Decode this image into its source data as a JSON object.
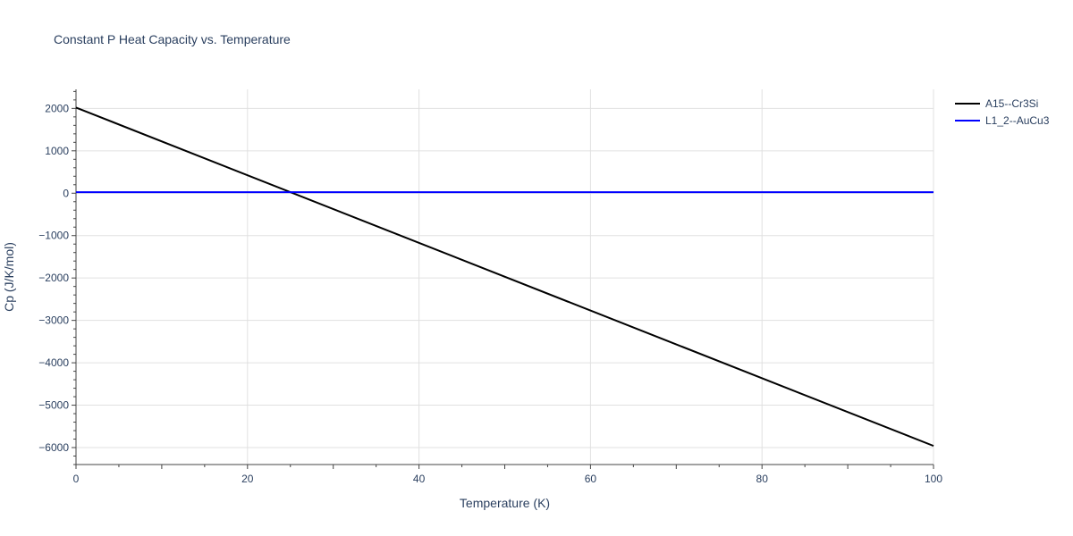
{
  "chart_data": {
    "type": "line",
    "title": "Constant P Heat Capacity vs. Temperature",
    "xlabel": "Temperature (K)",
    "ylabel": "Cp (J/K/mol)",
    "xlim": [
      0,
      100
    ],
    "ylim": [
      -6400,
      2450
    ],
    "x_ticks": [
      0,
      20,
      40,
      60,
      80,
      100
    ],
    "y_ticks": [
      -6000,
      -5000,
      -4000,
      -3000,
      -2000,
      -1000,
      0,
      1000,
      2000
    ],
    "x_tick_labels": [
      "0",
      "20",
      "40",
      "60",
      "80",
      "100"
    ],
    "y_tick_labels": [
      "−6000",
      "−5000",
      "−4000",
      "−3000",
      "−2000",
      "−1000",
      "0",
      "1000",
      "2000"
    ],
    "grid": true,
    "legend_position": "top-right-outside",
    "series": [
      {
        "name": "A15--Cr3Si",
        "color": "#000000",
        "x": [
          0,
          100
        ],
        "y": [
          2020,
          -5960
        ]
      },
      {
        "name": "L1_2--AuCu3",
        "color": "#0000ff",
        "x": [
          0,
          100
        ],
        "y": [
          25,
          25
        ]
      }
    ]
  }
}
